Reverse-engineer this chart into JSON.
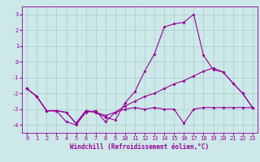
{
  "xlabel": "Windchill (Refroidissement éolien,°C)",
  "x": [
    0,
    1,
    2,
    3,
    4,
    5,
    6,
    7,
    8,
    9,
    10,
    11,
    12,
    13,
    14,
    15,
    16,
    17,
    18,
    19,
    20,
    21,
    22,
    23
  ],
  "line1_y": [
    -1.7,
    -2.2,
    -3.1,
    -3.1,
    -3.2,
    -3.9,
    -3.1,
    -3.2,
    -3.5,
    -3.7,
    -2.6,
    -1.9,
    -0.6,
    0.5,
    2.2,
    2.4,
    2.5,
    3.0,
    0.4,
    -0.5,
    -0.65,
    -1.35,
    -2.0,
    -2.9
  ],
  "line2_y": [
    -1.7,
    -2.2,
    -3.1,
    -3.1,
    -3.2,
    -3.9,
    -3.1,
    -3.2,
    -3.4,
    -3.2,
    -2.8,
    -2.5,
    -2.2,
    -2.0,
    -1.7,
    -1.4,
    -1.2,
    -0.9,
    -0.6,
    -0.4,
    -0.65,
    -1.35,
    -2.0,
    -2.9
  ],
  "line3_y": [
    -1.7,
    -2.2,
    -3.1,
    -3.1,
    -3.8,
    -4.0,
    -3.2,
    -3.1,
    -3.8,
    -3.2,
    -3.0,
    -2.9,
    -3.0,
    -2.9,
    -3.0,
    -3.0,
    -3.9,
    -3.0,
    -2.9,
    -2.9,
    -2.9,
    -2.9,
    -2.9,
    -2.9
  ],
  "bg_color": "#cce8e8",
  "grid_color": "#aacccc",
  "line_color": "#990099",
  "ylim": [
    -4.5,
    3.5
  ],
  "yticks": [
    -4,
    -3,
    -2,
    -1,
    0,
    1,
    2,
    3
  ],
  "xlim": [
    -0.5,
    23.5
  ],
  "marker": "D",
  "markersize": 2,
  "linewidth": 0.8,
  "xlabel_fontsize": 5.5,
  "tick_fontsize": 5.0
}
